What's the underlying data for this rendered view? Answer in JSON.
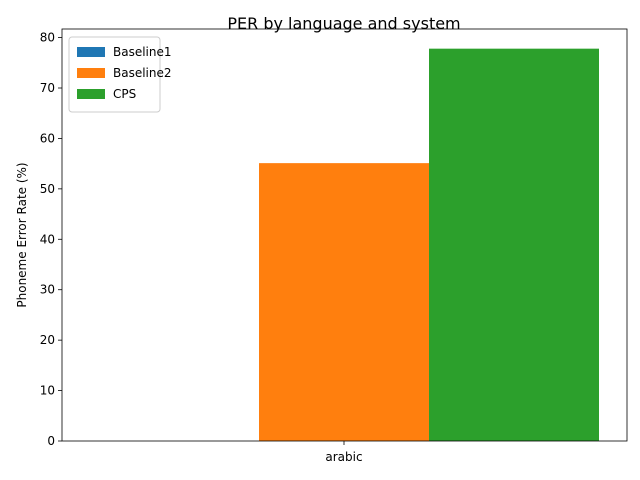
{
  "chart_data": {
    "type": "bar",
    "title": "PER by language and system",
    "xlabel": "",
    "ylabel": "Phoneme Error Rate (%)",
    "categories": [
      "arabic"
    ],
    "ylim": [
      0,
      81.7
    ],
    "yticks": [
      0,
      10,
      20,
      30,
      40,
      50,
      60,
      70,
      80
    ],
    "grid": false,
    "legend_position": "top-left",
    "series": [
      {
        "name": "Baseline1",
        "values": [
          0
        ],
        "color": "#1f77b4"
      },
      {
        "name": "Baseline2",
        "values": [
          55.1
        ],
        "color": "#ff7f0e"
      },
      {
        "name": "CPS",
        "values": [
          77.8
        ],
        "color": "#2ca02c"
      }
    ]
  }
}
